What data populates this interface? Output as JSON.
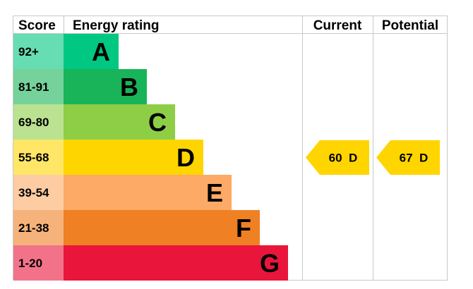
{
  "headers": {
    "score": "Score",
    "energy_rating": "Energy rating",
    "current": "Current",
    "potential": "Potential"
  },
  "chart_data": {
    "type": "bar",
    "categories": [
      "A",
      "B",
      "C",
      "D",
      "E",
      "F",
      "G"
    ],
    "score_ranges": [
      "92+",
      "81-91",
      "69-80",
      "55-68",
      "39-54",
      "21-38",
      "1-20"
    ],
    "band_colors": [
      "#00c781",
      "#19b459",
      "#8dce46",
      "#ffd500",
      "#fcaa65",
      "#ef8023",
      "#e9153b"
    ],
    "score_cell_colors": [
      "#66ddb3",
      "#75d29b",
      "#bbe290",
      "#ffe666",
      "#fdcca3",
      "#f5b37b",
      "#f27389"
    ],
    "current": {
      "value": 60,
      "band": "D",
      "label": "60  D"
    },
    "potential": {
      "value": 67,
      "band": "D",
      "label": "67  D"
    },
    "arrow_color": "#ffd500"
  }
}
